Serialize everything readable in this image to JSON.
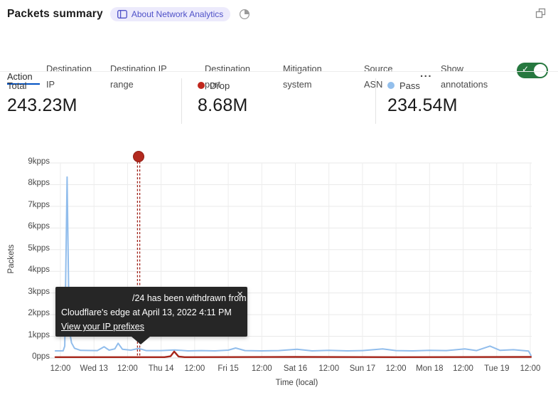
{
  "header": {
    "title": "Packets summary",
    "badge_label": "About Network Analytics",
    "badge_icon": "book-icon",
    "period_icon": "pie-clock-icon",
    "window_icon": "restore-window-icon"
  },
  "tabs": {
    "items": [
      {
        "label": "Action",
        "active": true
      },
      {
        "label": "Destination IP",
        "active": false
      },
      {
        "label": "Destination IP range",
        "active": false
      },
      {
        "label": "Destination port",
        "active": false
      },
      {
        "label": "Mitigation system",
        "active": false
      },
      {
        "label": "Source ASN",
        "active": false
      }
    ],
    "more_label": "...",
    "annotations_label": "Show annotations",
    "annotations_toggle": "on"
  },
  "icons": {
    "check": "✓",
    "close": "×"
  },
  "stats": [
    {
      "label": "Total",
      "value": "243.23M",
      "dot_color": ""
    },
    {
      "label": "Drop",
      "value": "8.68M",
      "dot_color": "#c0271d"
    },
    {
      "label": "Pass",
      "value": "234.54M",
      "dot_color": "#93bfec"
    }
  ],
  "tooltip": {
    "line1": "/24 has been withdrawn from",
    "line2": "Cloudflare's edge at April 13, 2022 4:11 PM",
    "link": "View your IP prefixes"
  },
  "chart_data": {
    "type": "line",
    "xlabel": "Time (local)",
    "ylabel": "Packets",
    "x_ticks": [
      "12:00",
      "Wed 13",
      "12:00",
      "Thu 14",
      "12:00",
      "Fri 15",
      "12:00",
      "Sat 16",
      "12:00",
      "Sun 17",
      "12:00",
      "Mon 18",
      "12:00",
      "Tue 19",
      "12:00"
    ],
    "y_ticks": [
      "0pps",
      "1kpps",
      "2kpps",
      "3kpps",
      "4kpps",
      "5kpps",
      "6kpps",
      "7kpps",
      "8kpps",
      "9kpps"
    ],
    "ylim_kpps": [
      0,
      9
    ],
    "grid": true,
    "legend_position": "top-stats-row",
    "series": [
      {
        "name": "Pass",
        "color": "#91bdec",
        "width": 2,
        "points": [
          [
            -0.15,
            0.33
          ],
          [
            0.08,
            0.33
          ],
          [
            0.13,
            0.55
          ],
          [
            0.2,
            8.35
          ],
          [
            0.26,
            1.35
          ],
          [
            0.33,
            0.7
          ],
          [
            0.42,
            0.45
          ],
          [
            0.6,
            0.35
          ],
          [
            1.1,
            0.34
          ],
          [
            1.3,
            0.52
          ],
          [
            1.45,
            0.36
          ],
          [
            1.62,
            0.42
          ],
          [
            1.72,
            0.68
          ],
          [
            1.85,
            0.4
          ],
          [
            2.1,
            0.36
          ],
          [
            2.33,
            0.44
          ],
          [
            2.55,
            0.34
          ],
          [
            3.0,
            0.34
          ],
          [
            3.4,
            0.37
          ],
          [
            3.8,
            0.33
          ],
          [
            4.2,
            0.34
          ],
          [
            4.6,
            0.33
          ],
          [
            5.0,
            0.36
          ],
          [
            5.22,
            0.46
          ],
          [
            5.5,
            0.34
          ],
          [
            6.0,
            0.33
          ],
          [
            6.5,
            0.34
          ],
          [
            7.05,
            0.4
          ],
          [
            7.5,
            0.33
          ],
          [
            8.0,
            0.35
          ],
          [
            8.55,
            0.33
          ],
          [
            9.0,
            0.34
          ],
          [
            9.6,
            0.42
          ],
          [
            10.0,
            0.34
          ],
          [
            10.5,
            0.33
          ],
          [
            11.0,
            0.35
          ],
          [
            11.5,
            0.34
          ],
          [
            12.05,
            0.42
          ],
          [
            12.4,
            0.34
          ],
          [
            12.8,
            0.55
          ],
          [
            13.1,
            0.35
          ],
          [
            13.5,
            0.38
          ],
          [
            13.8,
            0.34
          ],
          [
            13.95,
            0.32
          ],
          [
            14.02,
            0.12
          ]
        ]
      },
      {
        "name": "Drop",
        "color": "#a6261b",
        "width": 2.4,
        "points": [
          [
            -0.15,
            0.04
          ],
          [
            3.1,
            0.04
          ],
          [
            3.28,
            0.08
          ],
          [
            3.39,
            0.3
          ],
          [
            3.52,
            0.07
          ],
          [
            3.7,
            0.04
          ],
          [
            7.0,
            0.05
          ],
          [
            10.0,
            0.04
          ],
          [
            14.02,
            0.05
          ]
        ]
      }
    ],
    "annotation": {
      "t": 2.33,
      "dot_color": "#b32a1f",
      "line_color": "#9f231a",
      "label": "/24 has been withdrawn from Cloudflare's edge at April 13, 2022 4:11 PM"
    }
  }
}
